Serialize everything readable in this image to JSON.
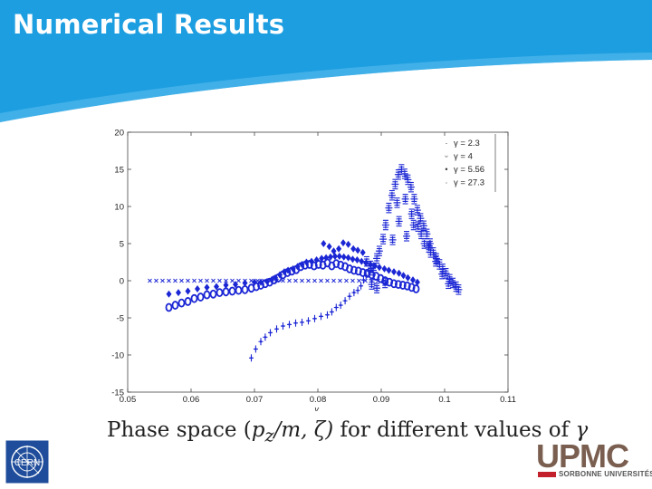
{
  "slide": {
    "title": "Numerical Results"
  },
  "caption": {
    "prefix": "Phase space (",
    "expr": "p",
    "sub": "z",
    "rest": "/m, ζ)",
    "suffix": " for different values of ",
    "symbol": "γ"
  },
  "logos": {
    "upmc_text": "UPMC",
    "upmc_subtitle": "SORBONNE UNIVERSITÉS",
    "cern_text": "CERN"
  },
  "colors": {
    "header": "#1d9ee0",
    "marker": "#1b26d4",
    "upmc": "#7a5f50",
    "upmc_red": "#c2202b"
  },
  "chart_data": {
    "type": "scatter",
    "xlabel": "γ",
    "ylabel": "",
    "xlim": [
      0.05,
      0.11
    ],
    "ylim": [
      -15,
      20
    ],
    "xticks": [
      "0.05",
      "0.06",
      "0.07",
      "0.08",
      "0.09",
      "0.1",
      "0.11"
    ],
    "yticks": [
      "20",
      "15",
      "10",
      "5",
      "0",
      "-5",
      "-10",
      "-15"
    ],
    "legend_position": "top-right",
    "series": [
      {
        "name": "γ = 2.3",
        "marker": "cross-dash",
        "points": [
          [
            0.0877,
            2.6
          ],
          [
            0.0883,
            2.0
          ],
          [
            0.0887,
            1.4
          ],
          [
            0.0893,
            3.0
          ],
          [
            0.0897,
            4.0
          ],
          [
            0.0903,
            5.6
          ],
          [
            0.0907,
            7.5
          ],
          [
            0.0912,
            9.8
          ],
          [
            0.0917,
            11.5
          ],
          [
            0.0922,
            13.0
          ],
          [
            0.0927,
            14.3
          ],
          [
            0.0932,
            15.0
          ],
          [
            0.0937,
            14.4
          ],
          [
            0.0942,
            13.6
          ],
          [
            0.0947,
            12.6
          ],
          [
            0.0952,
            11.0
          ],
          [
            0.0957,
            9.5
          ],
          [
            0.0962,
            8.4
          ],
          [
            0.0967,
            7.4
          ],
          [
            0.0972,
            6.3
          ],
          [
            0.0977,
            5.0
          ],
          [
            0.0982,
            3.8
          ],
          [
            0.0987,
            3.0
          ],
          [
            0.0992,
            2.2
          ],
          [
            0.0997,
            1.6
          ],
          [
            0.1002,
            1.0
          ],
          [
            0.1008,
            0.2
          ],
          [
            0.1013,
            -0.3
          ],
          [
            0.1018,
            -0.8
          ],
          [
            0.1022,
            -1.2
          ],
          [
            0.0885,
            -0.5
          ],
          [
            0.0893,
            -1.0
          ],
          [
            0.0906,
            -0.3
          ],
          [
            0.0918,
            5.5
          ],
          [
            0.0928,
            8.0
          ],
          [
            0.094,
            6.0
          ],
          [
            0.0951,
            7.5
          ],
          [
            0.0963,
            6.3
          ],
          [
            0.0975,
            4.5
          ],
          [
            0.0986,
            2.6
          ],
          [
            0.0996,
            0.9
          ],
          [
            0.1006,
            -0.4
          ],
          [
            0.0925,
            10.5
          ],
          [
            0.0938,
            11.0
          ],
          [
            0.0948,
            9.0
          ],
          [
            0.0958,
            7.3
          ],
          [
            0.0968,
            5.0
          ],
          [
            0.0978,
            3.8
          ]
        ]
      },
      {
        "name": "γ = 4",
        "marker": "diamond",
        "points": [
          [
            0.0565,
            -1.8
          ],
          [
            0.058,
            -1.6
          ],
          [
            0.0595,
            -1.4
          ],
          [
            0.061,
            -1.1
          ],
          [
            0.0625,
            -0.9
          ],
          [
            0.064,
            -0.8
          ],
          [
            0.0655,
            -0.6
          ],
          [
            0.067,
            -0.5
          ],
          [
            0.0685,
            -0.3
          ],
          [
            0.07,
            -0.2
          ],
          [
            0.071,
            -0.2
          ],
          [
            0.072,
            -0.1
          ],
          [
            0.0727,
            0.1
          ],
          [
            0.0733,
            0.4
          ],
          [
            0.074,
            0.8
          ],
          [
            0.0747,
            1.2
          ],
          [
            0.0753,
            1.4
          ],
          [
            0.0761,
            1.6
          ],
          [
            0.0768,
            1.9
          ],
          [
            0.0775,
            2.2
          ],
          [
            0.0782,
            2.5
          ],
          [
            0.079,
            2.6
          ],
          [
            0.0798,
            2.8
          ],
          [
            0.0806,
            3.0
          ],
          [
            0.0813,
            3.1
          ],
          [
            0.082,
            3.2
          ],
          [
            0.0827,
            3.3
          ],
          [
            0.0834,
            3.3
          ],
          [
            0.0841,
            3.2
          ],
          [
            0.0848,
            3.1
          ],
          [
            0.0855,
            2.9
          ],
          [
            0.0862,
            2.8
          ],
          [
            0.0869,
            2.6
          ],
          [
            0.0876,
            2.4
          ],
          [
            0.0883,
            2.2
          ],
          [
            0.089,
            2.0
          ],
          [
            0.0897,
            1.8
          ],
          [
            0.0905,
            1.6
          ],
          [
            0.0912,
            1.4
          ],
          [
            0.092,
            1.2
          ],
          [
            0.0928,
            1.0
          ],
          [
            0.0935,
            0.7
          ],
          [
            0.0942,
            0.4
          ],
          [
            0.095,
            0.1
          ],
          [
            0.0957,
            -0.2
          ],
          [
            0.0809,
            5.0
          ],
          [
            0.0818,
            4.6
          ],
          [
            0.0825,
            4.0
          ],
          [
            0.0833,
            4.3
          ],
          [
            0.084,
            5.1
          ],
          [
            0.0848,
            4.9
          ],
          [
            0.0856,
            4.3
          ],
          [
            0.0863,
            4.1
          ],
          [
            0.0871,
            3.8
          ]
        ]
      },
      {
        "name": "γ = 5.56",
        "marker": "plus-dot",
        "points": [
          [
            0.0695,
            -10.4
          ],
          [
            0.0702,
            -9.2
          ],
          [
            0.071,
            -8.2
          ],
          [
            0.0717,
            -7.6
          ],
          [
            0.0725,
            -7.0
          ],
          [
            0.0735,
            -6.5
          ],
          [
            0.0745,
            -6.1
          ],
          [
            0.0755,
            -5.9
          ],
          [
            0.0765,
            -5.7
          ],
          [
            0.0775,
            -5.6
          ],
          [
            0.0785,
            -5.4
          ],
          [
            0.0795,
            -5.1
          ],
          [
            0.0805,
            -4.8
          ],
          [
            0.0815,
            -4.6
          ],
          [
            0.0822,
            -4.2
          ],
          [
            0.0829,
            -3.6
          ],
          [
            0.0836,
            -3.3
          ],
          [
            0.0843,
            -2.7
          ],
          [
            0.085,
            -2.1
          ],
          [
            0.0857,
            -1.6
          ],
          [
            0.0863,
            -1.3
          ],
          [
            0.0868,
            -0.7
          ],
          [
            0.0872,
            0.1
          ],
          [
            0.0876,
            0.7
          ],
          [
            0.088,
            1.3
          ],
          [
            0.0884,
            1.6
          ],
          [
            0.0888,
            2.0
          ]
        ]
      },
      {
        "name": "γ = 27.3",
        "marker": "x",
        "points": [
          [
            0.0535,
            0.0
          ],
          [
            0.0545,
            0.0
          ],
          [
            0.0555,
            0.0
          ],
          [
            0.0565,
            0.0
          ],
          [
            0.0575,
            0.0
          ],
          [
            0.0585,
            0.0
          ],
          [
            0.0595,
            0.0
          ],
          [
            0.0605,
            0.0
          ],
          [
            0.0615,
            0.0
          ],
          [
            0.0625,
            0.0
          ],
          [
            0.0635,
            0.0
          ],
          [
            0.0645,
            0.0
          ],
          [
            0.0655,
            0.0
          ],
          [
            0.0665,
            0.0
          ],
          [
            0.0675,
            0.0
          ],
          [
            0.0685,
            0.0
          ],
          [
            0.0695,
            0.0
          ],
          [
            0.0705,
            0.0
          ],
          [
            0.0715,
            0.0
          ],
          [
            0.0725,
            0.0
          ],
          [
            0.0735,
            0.0
          ],
          [
            0.0745,
            0.0
          ],
          [
            0.0755,
            0.0
          ],
          [
            0.0765,
            0.0
          ],
          [
            0.0775,
            0.0
          ],
          [
            0.0785,
            0.0
          ],
          [
            0.0795,
            0.0
          ],
          [
            0.0805,
            0.0
          ],
          [
            0.0815,
            0.0
          ],
          [
            0.0825,
            0.0
          ],
          [
            0.0835,
            0.0
          ],
          [
            0.0845,
            0.0
          ],
          [
            0.0855,
            0.0
          ],
          [
            0.0865,
            0.0
          ],
          [
            0.0875,
            0.0
          ],
          [
            0.0885,
            0.0
          ],
          [
            0.0895,
            0.0
          ],
          [
            0.0905,
            0.0
          ]
        ]
      },
      {
        "name": "",
        "marker": "ring",
        "points": [
          [
            0.0565,
            -3.6
          ],
          [
            0.0575,
            -3.3
          ],
          [
            0.0585,
            -3.0
          ],
          [
            0.0595,
            -2.8
          ],
          [
            0.0605,
            -2.4
          ],
          [
            0.0615,
            -2.2
          ],
          [
            0.0625,
            -1.9
          ],
          [
            0.0635,
            -1.8
          ],
          [
            0.0645,
            -1.6
          ],
          [
            0.0655,
            -1.5
          ],
          [
            0.0665,
            -1.4
          ],
          [
            0.0675,
            -1.3
          ],
          [
            0.0685,
            -1.2
          ],
          [
            0.0695,
            -1.0
          ],
          [
            0.0703,
            -0.8
          ],
          [
            0.071,
            -0.6
          ],
          [
            0.0717,
            -0.4
          ],
          [
            0.0724,
            -0.2
          ],
          [
            0.0731,
            0.1
          ],
          [
            0.0738,
            0.4
          ],
          [
            0.0745,
            0.8
          ],
          [
            0.0752,
            1.1
          ],
          [
            0.0759,
            1.3
          ],
          [
            0.0766,
            1.5
          ],
          [
            0.0773,
            1.9
          ],
          [
            0.078,
            2.1
          ],
          [
            0.0787,
            2.2
          ],
          [
            0.0794,
            2.0
          ],
          [
            0.0801,
            2.2
          ],
          [
            0.0808,
            2.1
          ],
          [
            0.0815,
            2.4
          ],
          [
            0.0822,
            2.0
          ],
          [
            0.0829,
            2.3
          ],
          [
            0.0836,
            2.1
          ],
          [
            0.0843,
            1.9
          ],
          [
            0.085,
            1.6
          ],
          [
            0.0857,
            1.4
          ],
          [
            0.0864,
            1.3
          ],
          [
            0.0871,
            1.1
          ],
          [
            0.0878,
            1.0
          ],
          [
            0.0885,
            0.8
          ],
          [
            0.0892,
            0.6
          ],
          [
            0.0899,
            0.3
          ],
          [
            0.0906,
            0.0
          ],
          [
            0.0913,
            -0.2
          ],
          [
            0.092,
            -0.4
          ],
          [
            0.0927,
            -0.5
          ],
          [
            0.0934,
            -0.6
          ],
          [
            0.0941,
            -0.7
          ],
          [
            0.0948,
            -0.9
          ],
          [
            0.0955,
            -1.1
          ]
        ]
      }
    ]
  }
}
